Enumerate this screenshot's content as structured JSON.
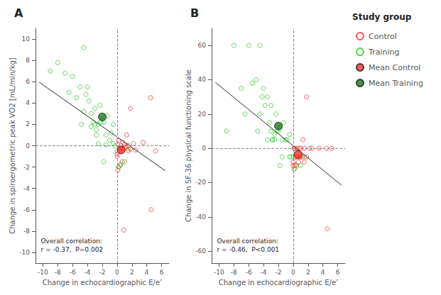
{
  "chart_data": [
    {
      "type": "scatter",
      "title": "A",
      "legend_title": "Study group",
      "legend": "right",
      "grid": false,
      "xlabel": "Change in echocardiographic E/e’",
      "ylabel": "Change in spiroergometric peak VO2 [mL/min/kg]",
      "xlim": [
        -11,
        7
      ],
      "ylim": [
        -11,
        11
      ],
      "xticks": [
        -10,
        -8,
        -6,
        -4,
        -2,
        0,
        2,
        4,
        6
      ],
      "yticks": [
        -10,
        -8,
        -6,
        -4,
        -2,
        0,
        2,
        4,
        6,
        8,
        10
      ],
      "annotation": "Overall correlation:\nr = -0.37,  P=0.002",
      "reference_lines": [
        {
          "axis": "y",
          "value": 0,
          "line_style": "dashed"
        },
        {
          "axis": "x",
          "value": 0,
          "line_style": "dashed"
        }
      ],
      "series": [
        {
          "name": "Control",
          "color": "#FF3333",
          "marker": "open_circle",
          "x": [
            0.1,
            0.3,
            0.8,
            1.0,
            1.5,
            1.8,
            4.5,
            4.6,
            5.2,
            0.0,
            0.2,
            0.4,
            0.5,
            0.7,
            1.0,
            1.2,
            1.5,
            1.8,
            2.5,
            0.0,
            0.1,
            0.2,
            0.4,
            0.6,
            0.5,
            0.8,
            1.3,
            2.2,
            3.5,
            0.9
          ],
          "values": [
            0.1,
            -0.5,
            -0.3,
            0.1,
            -0.5,
            3.5,
            4.5,
            -6.0,
            -0.5,
            -0.8,
            -2.0,
            -1.8,
            -0.3,
            -1.5,
            -0.2,
            -0.1,
            0.0,
            -0.3,
            -0.4,
            -1.0,
            -2.3,
            0.5,
            -0.3,
            -0.5,
            0.0,
            0.3,
            1.0,
            0.2,
            0.3,
            -7.9
          ]
        },
        {
          "name": "Training",
          "color": "#33CC33",
          "marker": "open_circle",
          "x": [
            -9.0,
            -8.0,
            -7.0,
            -6.5,
            -6.0,
            -5.5,
            -5.0,
            -4.8,
            -4.5,
            -4.2,
            -4.0,
            -3.8,
            -3.5,
            -3.2,
            -3.0,
            -2.8,
            -2.5,
            -2.3,
            -2.0,
            -1.8,
            -1.5,
            -1.3,
            -1.0,
            -0.8,
            -0.5,
            -0.3,
            0.0,
            0.2,
            0.5,
            1.0,
            -4.5,
            -3.5,
            -2.5,
            -1.5,
            -2.2,
            -3.0,
            -1.8,
            -2.8,
            -0.5,
            1.5
          ],
          "values": [
            7.0,
            7.8,
            6.8,
            5.0,
            6.5,
            4.5,
            5.5,
            2.0,
            3.2,
            4.8,
            5.5,
            4.2,
            1.8,
            2.2,
            3.5,
            1.5,
            2.0,
            3.8,
            2.5,
            2.2,
            1.0,
            2.8,
            0.5,
            1.2,
            2.0,
            0.0,
            -0.5,
            -2.0,
            -1.8,
            -1.5,
            9.2,
            3.0,
            0.2,
            0.1,
            2.2,
            2.0,
            -1.5,
            1.0,
            0.2,
            -0.3
          ]
        },
        {
          "name": "Mean Control",
          "color": "#FF3333",
          "marker": "circle",
          "x": [
            0.55
          ],
          "values": [
            -0.4
          ]
        },
        {
          "name": "Mean Training",
          "color": "#1A7A1A",
          "marker": "circle",
          "x": [
            -2.0
          ],
          "values": [
            2.7
          ]
        },
        {
          "type": "line",
          "color": "#2a2a2a",
          "x": [
            -10.5,
            6.5
          ],
          "values": [
            5.95,
            -2.35
          ]
        }
      ]
    },
    {
      "type": "scatter",
      "title": "B",
      "grid": false,
      "xlabel": "Change in echocardiographic E/e’",
      "ylabel": "Change in SF-36 physical functioning scale",
      "xlim": [
        -11,
        7
      ],
      "ylim": [
        -67,
        70
      ],
      "xticks": [
        -10,
        -8,
        -6,
        -4,
        -2,
        0,
        2,
        4,
        6
      ],
      "yticks": [
        -60,
        -40,
        -20,
        0,
        20,
        40,
        60
      ],
      "annotation": "Overall correlation:\nr = -0.46,  P<0.001",
      "reference_lines": [
        {
          "axis": "y",
          "value": 0,
          "line_style": "dashed"
        },
        {
          "axis": "x",
          "value": 0,
          "line_style": "dashed"
        }
      ],
      "series": [
        {
          "name": "Control",
          "color": "#FF3333",
          "marker": "open_circle",
          "x": [
            0.1,
            0.3,
            0.8,
            1.0,
            1.5,
            1.8,
            4.5,
            4.6,
            5.2,
            0.0,
            0.2,
            0.4,
            0.5,
            0.7,
            1.0,
            1.2,
            1.5,
            1.8,
            2.5,
            0.0,
            0.1,
            0.2,
            0.4,
            0.6,
            0.5,
            0.8,
            1.3,
            2.2,
            3.5,
            0.9
          ],
          "values": [
            0.0,
            -5.0,
            -5.0,
            0.0,
            -8.0,
            30.0,
            0.0,
            -47.0,
            0.0,
            -8.0,
            -10.0,
            -10.0,
            -5.0,
            -8.0,
            -5.0,
            -5.0,
            0.0,
            -5.0,
            0.0,
            -10.0,
            -12.0,
            0.0,
            -5.0,
            -3.0,
            0.0,
            0.0,
            5.0,
            0.0,
            0.0,
            -5.0
          ]
        },
        {
          "name": "Training",
          "color": "#33CC33",
          "marker": "open_circle",
          "x": [
            -9.0,
            -8.0,
            -7.0,
            -6.5,
            -6.0,
            -5.5,
            -5.0,
            -4.8,
            -4.5,
            -4.2,
            -4.0,
            -3.8,
            -3.5,
            -3.2,
            -3.0,
            -2.8,
            -2.5,
            -2.3,
            -2.0,
            -1.8,
            -1.5,
            -1.3,
            -1.0,
            -0.8,
            -0.5,
            -0.3,
            0.0,
            0.2,
            0.5,
            1.0,
            -4.5,
            -3.5,
            -2.5,
            -1.5,
            -2.2,
            -3.0,
            -1.8,
            -2.8,
            -0.5,
            1.5
          ],
          "values": [
            10.0,
            60.0,
            35.0,
            20.0,
            60.0,
            38.0,
            40.0,
            10.0,
            20.0,
            30.0,
            35.0,
            25.0,
            5.0,
            15.0,
            25.0,
            5.0,
            8.0,
            20.0,
            10.0,
            12.0,
            5.0,
            15.0,
            5.0,
            5.0,
            8.0,
            -5.0,
            -5.0,
            -12.0,
            -10.0,
            -10.0,
            60.0,
            30.0,
            5.0,
            -5.0,
            10.0,
            10.0,
            -10.0,
            5.0,
            -5.0,
            -5.0
          ]
        },
        {
          "name": "Mean Control",
          "color": "#FF3333",
          "marker": "circle",
          "x": [
            0.65
          ],
          "values": [
            -3.5
          ]
        },
        {
          "name": "Mean Training",
          "color": "#1A7A1A",
          "marker": "circle",
          "x": [
            -2.0
          ],
          "values": [
            13.0
          ]
        },
        {
          "type": "line",
          "color": "#2a2a2a",
          "x": [
            -10.5,
            6.5
          ],
          "values": [
            38.5,
            -21.5
          ]
        }
      ]
    }
  ]
}
